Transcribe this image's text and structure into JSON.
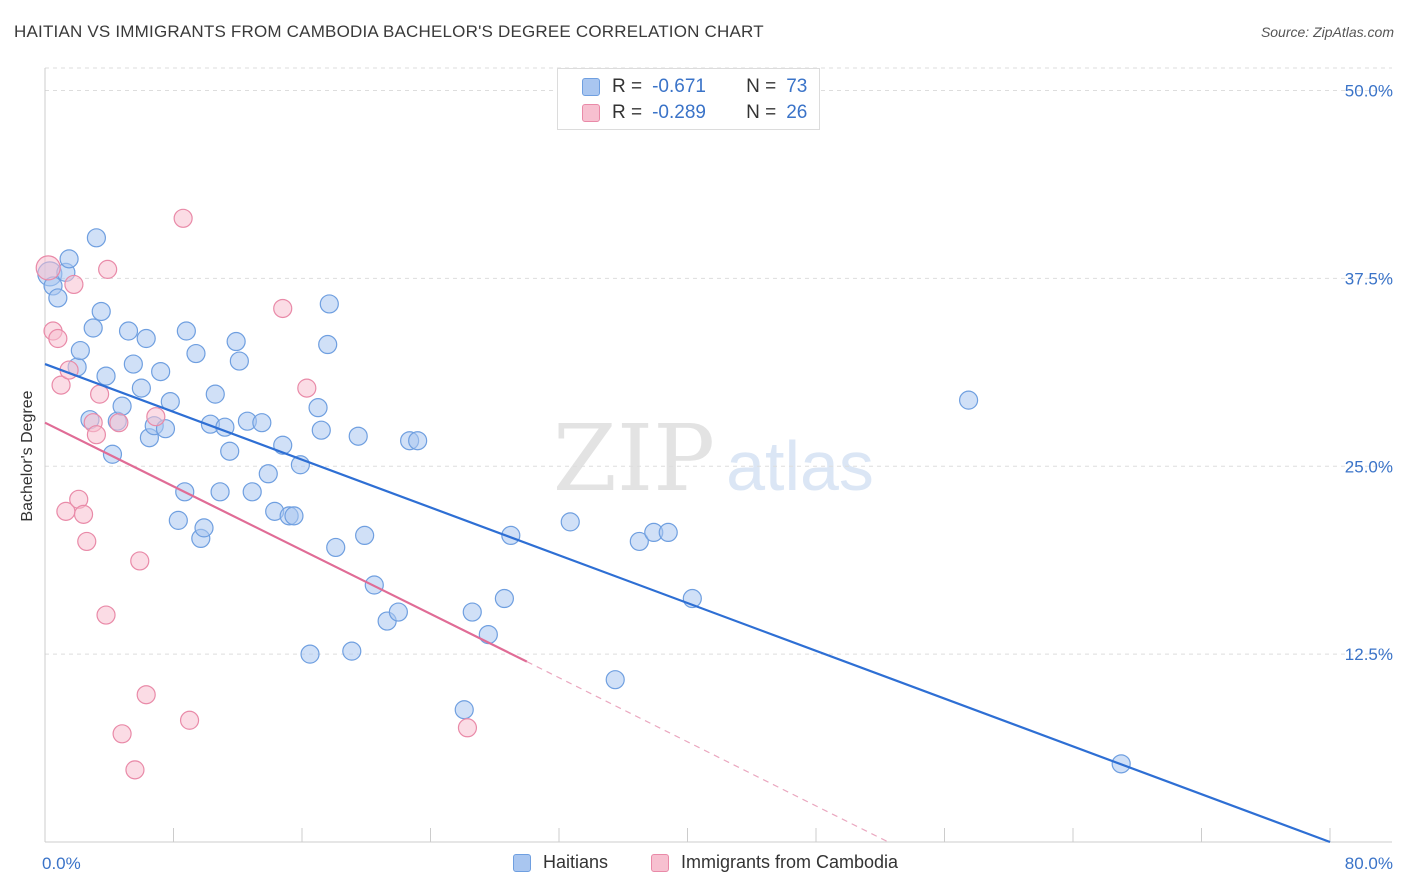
{
  "title": "HAITIAN VS IMMIGRANTS FROM CAMBODIA BACHELOR'S DEGREE CORRELATION CHART",
  "source": "Source: ZipAtlas.com",
  "watermark": {
    "zip": "ZIP",
    "atlas": "atlas"
  },
  "legend_top": [
    {
      "r_label": "R =",
      "r_value": "-0.671",
      "n_label": "N =",
      "n_value": "73",
      "color": "#a9c6f0",
      "border": "#6f9fe0"
    },
    {
      "r_label": "R =",
      "r_value": "-0.289",
      "n_label": "N =",
      "n_value": "26",
      "color": "#f7c0d0",
      "border": "#e98aa8"
    }
  ],
  "legend_bottom": [
    {
      "label": "Haitians",
      "color": "#a9c6f0",
      "border": "#6f9fe0"
    },
    {
      "label": "Immigrants from Cambodia",
      "color": "#f7c0d0",
      "border": "#e98aa8"
    }
  ],
  "chart_data": {
    "type": "scatter",
    "title": "HAITIAN VS IMMIGRANTS FROM CAMBODIA BACHELOR'S DEGREE CORRELATION CHART",
    "ylabel": "Bachelor's Degree",
    "xlim": [
      0,
      80
    ],
    "ylim": [
      0,
      51.5
    ],
    "x_tick_labels": [
      "0.0%",
      "80.0%"
    ],
    "y_ticks": [
      12.5,
      25.0,
      37.5,
      50.0
    ],
    "y_tick_labels": [
      "12.5%",
      "25.0%",
      "37.5%",
      "50.0%"
    ],
    "grid": true,
    "series": [
      {
        "name": "Haitians",
        "color": "#6f9fe0",
        "fill": "#a9c6f0",
        "trend": {
          "x0": 0,
          "y0": 31.8,
          "x1": 80,
          "y1": 0
        },
        "points": [
          [
            0.3,
            37.8
          ],
          [
            0.5,
            37.0
          ],
          [
            0.8,
            36.2
          ],
          [
            1.3,
            37.9
          ],
          [
            1.5,
            38.8
          ],
          [
            3.2,
            40.2
          ],
          [
            2.0,
            31.6
          ],
          [
            2.2,
            32.7
          ],
          [
            2.8,
            28.1
          ],
          [
            3.0,
            34.2
          ],
          [
            3.5,
            35.3
          ],
          [
            3.8,
            31.0
          ],
          [
            4.2,
            25.8
          ],
          [
            4.5,
            28.0
          ],
          [
            4.8,
            29.0
          ],
          [
            5.2,
            34.0
          ],
          [
            5.5,
            31.8
          ],
          [
            6.0,
            30.2
          ],
          [
            6.3,
            33.5
          ],
          [
            6.5,
            26.9
          ],
          [
            6.8,
            27.7
          ],
          [
            7.2,
            31.3
          ],
          [
            7.5,
            27.5
          ],
          [
            7.8,
            29.3
          ],
          [
            8.3,
            21.4
          ],
          [
            8.7,
            23.3
          ],
          [
            8.8,
            34.0
          ],
          [
            9.4,
            32.5
          ],
          [
            9.7,
            20.2
          ],
          [
            9.9,
            20.9
          ],
          [
            10.3,
            27.8
          ],
          [
            10.6,
            29.8
          ],
          [
            10.9,
            23.3
          ],
          [
            11.2,
            27.6
          ],
          [
            11.5,
            26.0
          ],
          [
            11.9,
            33.3
          ],
          [
            12.1,
            32.0
          ],
          [
            12.6,
            28.0
          ],
          [
            12.9,
            23.3
          ],
          [
            13.5,
            27.9
          ],
          [
            13.9,
            24.5
          ],
          [
            14.3,
            22.0
          ],
          [
            14.8,
            26.4
          ],
          [
            15.2,
            21.7
          ],
          [
            15.5,
            21.7
          ],
          [
            15.9,
            25.1
          ],
          [
            16.5,
            12.5
          ],
          [
            17.0,
            28.9
          ],
          [
            17.2,
            27.4
          ],
          [
            17.6,
            33.1
          ],
          [
            17.7,
            35.8
          ],
          [
            18.1,
            19.6
          ],
          [
            19.1,
            12.7
          ],
          [
            19.5,
            27.0
          ],
          [
            19.9,
            20.4
          ],
          [
            20.5,
            17.1
          ],
          [
            21.3,
            14.7
          ],
          [
            22.0,
            15.3
          ],
          [
            22.7,
            26.7
          ],
          [
            23.2,
            26.7
          ],
          [
            26.1,
            8.8
          ],
          [
            26.6,
            15.3
          ],
          [
            27.6,
            13.8
          ],
          [
            28.6,
            16.2
          ],
          [
            29.0,
            20.4
          ],
          [
            32.7,
            21.3
          ],
          [
            35.5,
            10.8
          ],
          [
            37.0,
            20.0
          ],
          [
            37.9,
            20.6
          ],
          [
            38.8,
            20.6
          ],
          [
            40.3,
            16.2
          ],
          [
            57.5,
            29.4
          ],
          [
            67.0,
            5.2
          ]
        ]
      },
      {
        "name": "Immigrants from Cambodia",
        "color": "#e98aa8",
        "fill": "#f7c0d0",
        "trend": {
          "x0": 0,
          "y0": 27.9,
          "x1": 30.0,
          "y1": 12.0,
          "dash_x1": 52.5,
          "dash_y1": 0
        },
        "points": [
          [
            0.2,
            38.2
          ],
          [
            0.5,
            34.0
          ],
          [
            0.8,
            33.5
          ],
          [
            1.0,
            30.4
          ],
          [
            1.5,
            31.4
          ],
          [
            1.3,
            22.0
          ],
          [
            1.8,
            37.1
          ],
          [
            2.1,
            22.8
          ],
          [
            2.4,
            21.8
          ],
          [
            2.6,
            20.0
          ],
          [
            3.0,
            27.9
          ],
          [
            3.2,
            27.1
          ],
          [
            3.4,
            29.8
          ],
          [
            3.8,
            15.1
          ],
          [
            3.9,
            38.1
          ],
          [
            4.6,
            27.9
          ],
          [
            4.8,
            7.2
          ],
          [
            5.6,
            4.8
          ],
          [
            5.9,
            18.7
          ],
          [
            6.3,
            9.8
          ],
          [
            6.9,
            28.3
          ],
          [
            8.6,
            41.5
          ],
          [
            9.0,
            8.1
          ],
          [
            14.8,
            35.5
          ],
          [
            16.3,
            30.2
          ],
          [
            26.3,
            7.6
          ]
        ]
      }
    ]
  }
}
